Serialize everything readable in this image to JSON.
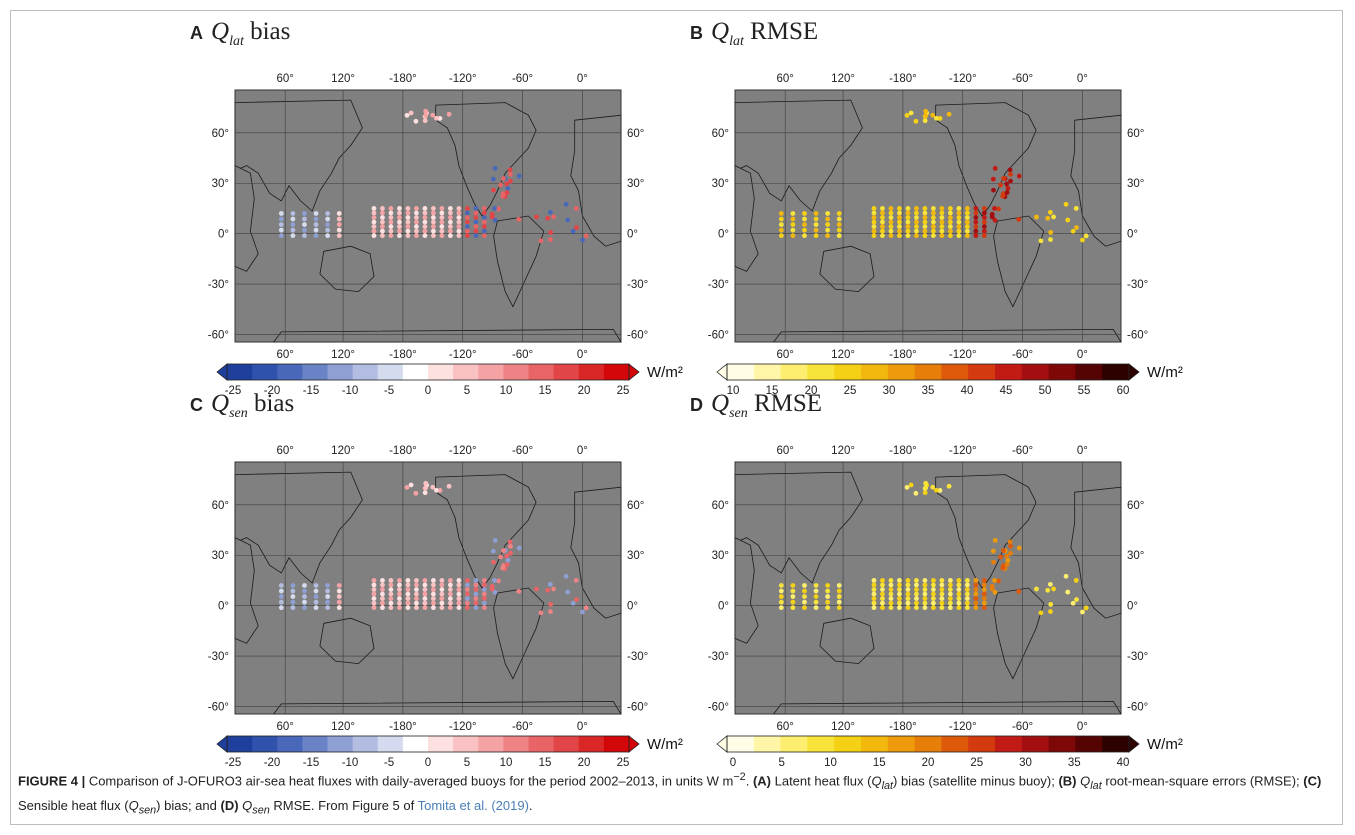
{
  "figure": {
    "panels": [
      {
        "letter": "A",
        "symbol": "Q",
        "sub": "lat",
        "suffix": "bias",
        "colormap": "diverging",
        "colorbar_ticks": [
          "-25",
          "-20",
          "-15",
          "-10",
          "-5",
          "0",
          "5",
          "10",
          "15",
          "20",
          "25"
        ],
        "unit": "W/m²"
      },
      {
        "letter": "B",
        "symbol": "Q",
        "sub": "lat",
        "suffix": "RMSE",
        "colormap": "sequential",
        "colorbar_ticks": [
          "10",
          "15",
          "20",
          "25",
          "30",
          "35",
          "40",
          "45",
          "50",
          "55",
          "60"
        ],
        "unit": "W/m²"
      },
      {
        "letter": "C",
        "symbol": "Q",
        "sub": "sen",
        "suffix": "bias",
        "colormap": "diverging",
        "colorbar_ticks": [
          "-25",
          "-20",
          "-15",
          "-10",
          "-5",
          "0",
          "5",
          "10",
          "15",
          "20",
          "25"
        ],
        "unit": "W/m²"
      },
      {
        "letter": "D",
        "symbol": "Q",
        "sub": "sen",
        "suffix": "RMSE",
        "colormap": "sequential",
        "colorbar_ticks": [
          "0",
          "5",
          "10",
          "15",
          "20",
          "25",
          "30",
          "35",
          "40"
        ],
        "unit": "W/m²"
      }
    ],
    "map": {
      "lon_ticks": [
        "60°",
        "120°",
        "-180°",
        "-120°",
        "-60°",
        "0°"
      ],
      "lat_ticks": [
        "60°",
        "30°",
        "0°",
        "-30°",
        "-60°"
      ],
      "ocean_color": "#808080",
      "coast_color": "#1a1a1a"
    },
    "colors": {
      "diverging": [
        "#1f3f9c",
        "#2f52ad",
        "#4a68ba",
        "#6a82c6",
        "#8e9fd4",
        "#b2bde1",
        "#d5dbef",
        "#ffffff",
        "#fde0e0",
        "#f9c1c2",
        "#f4a2a4",
        "#ee8385",
        "#e86466",
        "#e24547",
        "#db2628",
        "#d30709"
      ],
      "sequential": [
        "#fffde6",
        "#fff6a8",
        "#fdee70",
        "#f8e33a",
        "#f5d116",
        "#f2b80e",
        "#ed9b0b",
        "#e67e09",
        "#de5a0a",
        "#d33a0f",
        "#c21a14",
        "#a30f10",
        "#7e0808",
        "#560303",
        "#2e0101"
      ]
    }
  },
  "caption": {
    "label": "FIGURE 4 |",
    "text_1": " Comparison of J-OFURO3 air-sea heat fluxes with daily-averaged buoys for the period 2002–2013, in units W m",
    "text_1_sup": "−2",
    "text_2": ". ",
    "a": "(A)",
    "a_text": " Latent heat flux (",
    "q": "Q",
    "lat": "lat",
    "sen": "sen",
    "a_text2": ") bias (satellite minus buoy); ",
    "b": "(B)",
    "b_text": " root-mean-square errors (RMSE); ",
    "c": "(C)",
    "c_text": " Sensible heat flux (",
    "c_text2": ") bias; and ",
    "d": "(D)",
    "d_text": " RMSE. From Figure 5 of ",
    "ref": "Tomita et al. (2019)",
    "end": "."
  }
}
